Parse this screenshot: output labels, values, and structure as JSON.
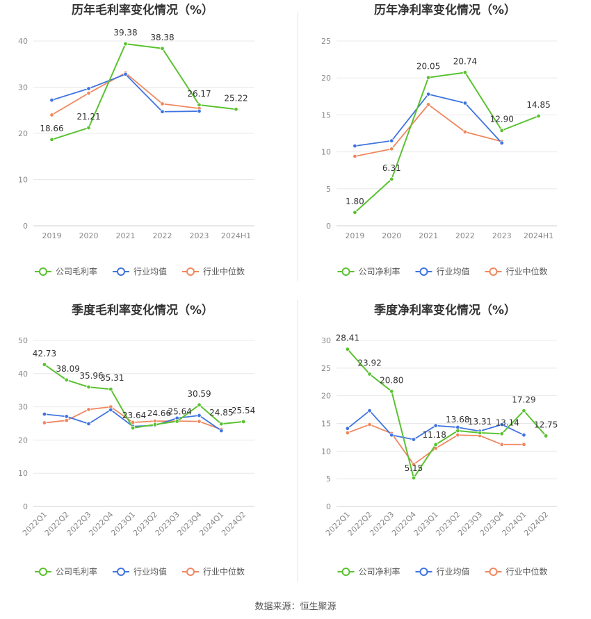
{
  "colors": {
    "company": "#5ac230",
    "avg": "#3f74e0",
    "median": "#f0875f",
    "grid": "#e8e8e8",
    "axis_text": "#888888",
    "label_text": "#333333",
    "title_text": "#333333",
    "divider": "#e6e6e6"
  },
  "source": "数据来源：恒生聚源",
  "chart_data": [
    {
      "type": "line",
      "title": "历年毛利率变化情况（%）",
      "categories": [
        "2019",
        "2020",
        "2021",
        "2022",
        "2023",
        "2024H1"
      ],
      "ylim": [
        0,
        40
      ],
      "yticks": [
        0,
        10,
        20,
        30,
        40
      ],
      "rotate_x": false,
      "series": [
        {
          "name": "公司毛利率",
          "key": "company",
          "values": [
            18.66,
            21.21,
            39.38,
            38.38,
            26.17,
            25.22
          ],
          "labels": [
            "18.66",
            "21.21",
            "39.38",
            "38.38",
            "26.17",
            "25.22"
          ]
        },
        {
          "name": "行业均值",
          "key": "avg",
          "values": [
            27.2,
            29.7,
            32.8,
            24.7,
            24.8,
            null
          ]
        },
        {
          "name": "行业中位数",
          "key": "median",
          "values": [
            24.0,
            28.7,
            33.1,
            26.4,
            25.4,
            null
          ]
        }
      ],
      "legend": [
        "公司毛利率",
        "行业均值",
        "行业中位数"
      ],
      "legend_position": "bottom"
    },
    {
      "type": "line",
      "title": "历年净利率变化情况（%）",
      "categories": [
        "2019",
        "2020",
        "2021",
        "2022",
        "2023",
        "2024H1"
      ],
      "ylim": [
        0,
        25
      ],
      "yticks": [
        0,
        5,
        10,
        15,
        20,
        25
      ],
      "rotate_x": false,
      "series": [
        {
          "name": "公司净利率",
          "key": "company",
          "values": [
            1.8,
            6.31,
            20.05,
            20.74,
            12.9,
            14.85
          ],
          "labels": [
            "1.80",
            "6.31",
            "20.05",
            "20.74",
            "12.90",
            "14.85"
          ]
        },
        {
          "name": "行业均值",
          "key": "avg",
          "values": [
            10.8,
            11.5,
            17.8,
            16.6,
            11.2,
            null
          ]
        },
        {
          "name": "行业中位数",
          "key": "median",
          "values": [
            9.4,
            10.4,
            16.4,
            12.7,
            11.4,
            null
          ]
        }
      ],
      "legend": [
        "公司净利率",
        "行业均值",
        "行业中位数"
      ],
      "legend_position": "bottom"
    },
    {
      "type": "line",
      "title": "季度毛利率变化情况（%）",
      "categories": [
        "2022Q1",
        "2022Q2",
        "2022Q3",
        "2022Q4",
        "2023Q1",
        "2023Q2",
        "2023Q3",
        "2023Q4",
        "2024Q1",
        "2024Q2"
      ],
      "ylim": [
        0,
        50
      ],
      "yticks": [
        0,
        10,
        20,
        30,
        40,
        50
      ],
      "rotate_x": true,
      "series": [
        {
          "name": "公司毛利率",
          "key": "company",
          "values": [
            42.73,
            38.09,
            35.96,
            35.31,
            23.64,
            24.66,
            25.64,
            30.59,
            24.85,
            25.54
          ],
          "labels": [
            "42.73",
            "38.09",
            "35.96",
            "35.31",
            "23.64",
            "24.66",
            "25.64",
            "30.59",
            "24.85",
            "25.54"
          ]
        },
        {
          "name": "行业均值",
          "key": "avg",
          "values": [
            27.8,
            27.1,
            24.9,
            29.1,
            24.1,
            24.4,
            26.6,
            27.4,
            22.8,
            null
          ]
        },
        {
          "name": "行业中位数",
          "key": "median",
          "values": [
            25.2,
            25.9,
            29.2,
            30.0,
            25.3,
            25.7,
            25.7,
            25.6,
            23.2,
            null
          ]
        }
      ],
      "legend": [
        "公司毛利率",
        "行业均值",
        "行业中位数"
      ],
      "legend_position": "bottom"
    },
    {
      "type": "line",
      "title": "季度净利率变化情况（%）",
      "categories": [
        "2022Q1",
        "2022Q2",
        "2022Q3",
        "2022Q4",
        "2023Q1",
        "2023Q2",
        "2023Q3",
        "2023Q4",
        "2024Q1",
        "2024Q2"
      ],
      "ylim": [
        0,
        30
      ],
      "yticks": [
        0,
        5,
        10,
        15,
        20,
        25,
        30
      ],
      "rotate_x": true,
      "series": [
        {
          "name": "公司净利率",
          "key": "company",
          "values": [
            28.41,
            23.92,
            20.8,
            5.15,
            11.18,
            13.68,
            13.31,
            13.14,
            17.29,
            12.75
          ],
          "labels": [
            "28.41",
            "23.92",
            "20.80",
            "5.15",
            "11.18",
            "13.68",
            "13.31",
            "13.14",
            "17.29",
            "12.75"
          ]
        },
        {
          "name": "行业均值",
          "key": "avg",
          "values": [
            14.1,
            17.3,
            12.9,
            12.1,
            14.6,
            14.3,
            13.6,
            14.8,
            12.9,
            null
          ]
        },
        {
          "name": "行业中位数",
          "key": "median",
          "values": [
            13.3,
            14.8,
            13.2,
            7.6,
            10.5,
            12.9,
            12.8,
            11.2,
            11.2,
            null
          ]
        }
      ],
      "legend": [
        "公司净利率",
        "行业均值",
        "行业中位数"
      ],
      "legend_position": "bottom"
    }
  ]
}
